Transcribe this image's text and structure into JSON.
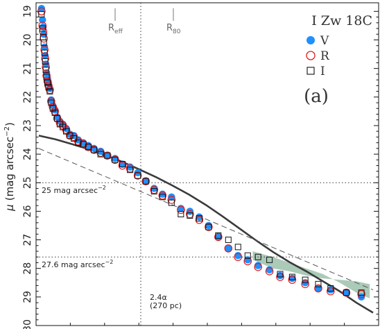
{
  "chart_data": {
    "type": "scatter",
    "title": "I Zw 18C",
    "panel_label": "(a)",
    "ylabel_mu": "μ",
    "ylabel_units": "(mag arcsec",
    "ylabel_exp": "−2",
    "ylabel_close": ")",
    "yticks": [
      19,
      20,
      21,
      22,
      23,
      24,
      25,
      26,
      27,
      28,
      29,
      30
    ],
    "ylim": [
      18.7,
      30
    ],
    "y_inverted": true,
    "x_units": "relative radius (arbitrary, no ticks shown)",
    "xlim": [
      0,
      1
    ],
    "grid": false,
    "legend_position": "top-right",
    "legend": [
      {
        "label": "V",
        "marker": "filled-circle",
        "color": "#1e90ff"
      },
      {
        "label": "R",
        "marker": "open-circle",
        "color": "#e41a1c"
      },
      {
        "label": "I",
        "marker": "open-square",
        "color": "#111111"
      }
    ],
    "markers": [
      {
        "label": "R",
        "sub": "eff",
        "x": 0.218
      },
      {
        "label": "R",
        "sub": "80",
        "x": 0.393
      }
    ],
    "vline_2p4alpha": {
      "x": 0.305,
      "label1": "2.4α",
      "label2": "(270 pc)"
    },
    "hlines": [
      {
        "y": 25.0,
        "text": "25 mag arcsec",
        "exp": "−2"
      },
      {
        "y": 27.6,
        "text": "27.6 mag arcsec",
        "exp": "−2"
      }
    ],
    "series": [
      {
        "name": "V",
        "x": [
          0.008,
          0.011,
          0.013,
          0.015,
          0.017,
          0.019,
          0.021,
          0.023,
          0.026,
          0.029,
          0.033,
          0.037,
          0.042,
          0.048,
          0.055,
          0.063,
          0.072,
          0.082,
          0.093,
          0.105,
          0.118,
          0.133,
          0.148,
          0.165,
          0.185,
          0.205,
          0.228,
          0.25,
          0.273,
          0.296,
          0.32,
          0.345,
          0.37,
          0.397,
          0.425,
          0.452,
          0.48,
          0.508,
          0.537,
          0.567,
          0.596,
          0.625,
          0.656,
          0.69,
          0.722,
          0.758,
          0.797,
          0.836,
          0.873,
          0.92,
          0.965
        ],
        "y": [
          18.9,
          19.3,
          19.55,
          19.8,
          20.25,
          20.55,
          20.85,
          21.15,
          21.35,
          21.5,
          21.7,
          22.1,
          22.3,
          22.45,
          22.7,
          22.85,
          22.95,
          23.1,
          23.3,
          23.35,
          23.5,
          23.6,
          23.7,
          23.8,
          23.9,
          24.05,
          24.15,
          24.35,
          24.45,
          24.65,
          24.95,
          25.2,
          25.4,
          25.5,
          25.9,
          26.0,
          26.2,
          26.5,
          26.9,
          27.3,
          27.55,
          27.7,
          27.9,
          28.05,
          28.25,
          28.35,
          28.5,
          28.7,
          28.75,
          28.85,
          29.0
        ]
      },
      {
        "name": "R",
        "x": [
          0.008,
          0.011,
          0.013,
          0.015,
          0.017,
          0.019,
          0.021,
          0.023,
          0.026,
          0.029,
          0.033,
          0.037,
          0.042,
          0.048,
          0.055,
          0.063,
          0.072,
          0.082,
          0.093,
          0.105,
          0.118,
          0.133,
          0.148,
          0.165,
          0.185,
          0.205,
          0.228,
          0.25,
          0.273,
          0.296,
          0.32,
          0.345,
          0.37,
          0.397,
          0.425,
          0.452,
          0.48,
          0.508,
          0.537,
          0.567,
          0.596,
          0.625,
          0.656,
          0.69,
          0.722,
          0.758,
          0.797,
          0.836,
          0.873,
          0.92,
          0.965
        ],
        "y": [
          19.0,
          19.5,
          19.7,
          19.95,
          20.35,
          20.65,
          20.95,
          21.25,
          21.45,
          21.6,
          21.75,
          22.15,
          22.35,
          22.5,
          22.75,
          22.9,
          23.0,
          23.15,
          23.35,
          23.4,
          23.55,
          23.65,
          23.75,
          23.85,
          23.95,
          24.05,
          24.2,
          24.4,
          24.5,
          24.75,
          24.95,
          25.25,
          25.45,
          25.6,
          25.95,
          26.1,
          26.3,
          26.55,
          26.9,
          27.3,
          27.6,
          27.75,
          27.95,
          28.1,
          28.3,
          28.4,
          28.55,
          28.7,
          28.8,
          28.85,
          28.9
        ]
      },
      {
        "name": "I",
        "x": [
          0.008,
          0.011,
          0.013,
          0.015,
          0.017,
          0.019,
          0.021,
          0.023,
          0.026,
          0.029,
          0.033,
          0.037,
          0.042,
          0.048,
          0.055,
          0.063,
          0.072,
          0.082,
          0.093,
          0.105,
          0.118,
          0.133,
          0.148,
          0.165,
          0.185,
          0.205,
          0.228,
          0.25,
          0.273,
          0.296,
          0.32,
          0.345,
          0.37,
          0.397,
          0.425,
          0.452,
          0.48,
          0.508,
          0.537,
          0.567,
          0.596,
          0.625,
          0.656,
          0.69,
          0.722,
          0.758,
          0.797,
          0.836,
          0.873,
          0.92,
          0.965
        ],
        "y": [
          19.1,
          19.6,
          19.9,
          20.1,
          20.45,
          20.75,
          21.05,
          21.3,
          21.5,
          21.65,
          21.8,
          22.2,
          22.4,
          22.55,
          22.75,
          22.95,
          23.05,
          23.2,
          23.35,
          23.45,
          23.6,
          23.65,
          23.75,
          23.85,
          24.0,
          24.05,
          24.2,
          24.35,
          24.55,
          24.75,
          24.95,
          25.3,
          25.5,
          25.7,
          26.1,
          26.15,
          26.25,
          26.55,
          26.85,
          27.0,
          27.25,
          27.55,
          27.6,
          27.7,
          28.2,
          28.3,
          28.4,
          28.55,
          28.7,
          28.85,
          28.85
        ]
      }
    ],
    "model_curve": {
      "x": [
        0,
        0.05,
        0.1,
        0.15,
        0.2,
        0.25,
        0.3,
        0.35,
        0.4,
        0.45,
        0.5,
        0.55,
        0.6,
        0.65,
        0.7,
        0.75,
        0.8,
        0.85,
        0.9,
        0.95,
        1.0
      ],
      "y": [
        23.35,
        23.48,
        23.65,
        23.83,
        24.04,
        24.27,
        24.53,
        24.8,
        25.1,
        25.42,
        25.78,
        26.18,
        26.6,
        27.02,
        27.42,
        27.78,
        28.1,
        28.45,
        28.8,
        29.2,
        29.55
      ]
    },
    "dashed_line": {
      "x": [
        0,
        1
      ],
      "y": [
        23.8,
        28.75
      ]
    },
    "uncertainty_band": {
      "x": [
        0.64,
        0.7,
        0.75,
        0.8,
        0.85,
        0.9,
        0.95,
        0.99
      ],
      "y_low": [
        27.4,
        27.6,
        27.8,
        28.0,
        28.2,
        28.5,
        28.85,
        29.05
      ],
      "y_high": [
        27.7,
        28.0,
        28.1,
        28.25,
        28.35,
        28.4,
        28.45,
        28.55
      ]
    }
  }
}
